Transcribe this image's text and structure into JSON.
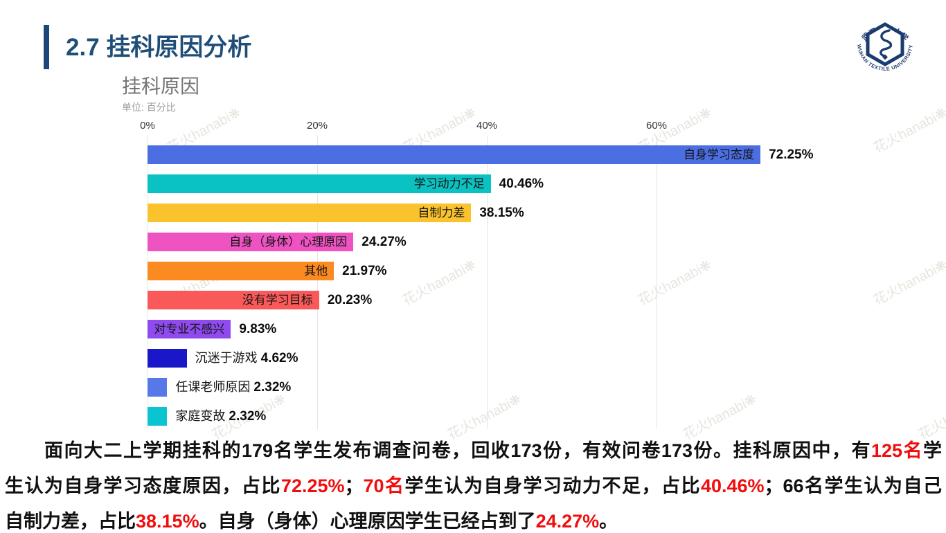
{
  "page": {
    "title": "2.7 挂科原因分析",
    "title_color": "#1f4e79"
  },
  "logo": {
    "top_text": "武汉纺织大学",
    "bottom_text": "WUHAN TEXTILE UNIVERSITY",
    "color": "#1b3c6e"
  },
  "chart": {
    "title": "挂科原因",
    "subtitle": "单位: 百分比",
    "watermark_text": "花火hanabi❋"
  },
  "chart_data": {
    "type": "bar",
    "orientation": "horizontal",
    "title": "挂科原因",
    "unit_label": "单位: 百分比",
    "categories": [
      "自身学习态度",
      "学习动力不足",
      "自制力差",
      "自身（身体）心理原因",
      "其他",
      "没有学习目标",
      "对专业不感兴",
      "沉迷于游戏",
      "任课老师原因",
      "家庭变故"
    ],
    "values": [
      72.25,
      40.46,
      38.15,
      24.27,
      21.97,
      20.23,
      9.83,
      4.62,
      2.32,
      2.32
    ],
    "value_labels": [
      "72.25%",
      "40.46%",
      "38.15%",
      "24.27%",
      "21.97%",
      "20.23%",
      "9.83%",
      "4.62%",
      "2.32%",
      "2.32%"
    ],
    "bar_colors": [
      "#4c6ee3",
      "#0bc2c2",
      "#fac32d",
      "#ef53c2",
      "#fb8a20",
      "#f95a59",
      "#8f4bee",
      "#1818c9",
      "#5678e9",
      "#0ac4d2"
    ],
    "x_ticks": [
      "0%",
      "20%",
      "40%",
      "60%"
    ],
    "x_tick_values": [
      0,
      20,
      40,
      60
    ],
    "xlim": [
      0,
      79
    ],
    "grid": true,
    "legend": false,
    "label_placement": "inside-end for bars 1-7, outside-end for bars 8-10"
  },
  "summary": {
    "red_color": "#f20d0d",
    "lines": [
      {
        "fill": true,
        "segments": [
          {
            "style": "plain",
            "text": "　　面向大二上学期挂科的179名学生发布调查问卷，回收173份，有效问卷173份。挂科原因中，有"
          },
          {
            "style": "red",
            "text": "125名"
          },
          {
            "style": "plain",
            "text": "学"
          }
        ]
      },
      {
        "fill": true,
        "segments": [
          {
            "style": "plain",
            "text": "生认为自身学习态度原因，占比"
          },
          {
            "style": "red-bold",
            "text": "72.25%"
          },
          {
            "style": "plain",
            "text": "；"
          },
          {
            "style": "red-bold",
            "text": "70名"
          },
          {
            "style": "plain",
            "text": "学生认为自身学习动力不足，占比"
          },
          {
            "style": "red-bold",
            "text": "40.46%"
          },
          {
            "style": "plain",
            "text": "；66名学生认为自己"
          }
        ]
      },
      {
        "fill": false,
        "segments": [
          {
            "style": "plain",
            "text": "自制力差，占比"
          },
          {
            "style": "red-bold",
            "text": "38.15%"
          },
          {
            "style": "plain",
            "text": "。自身（身体）心理原因学生已经占到了"
          },
          {
            "style": "red-bold",
            "text": "24.27%"
          },
          {
            "style": "plain",
            "text": "。"
          }
        ]
      }
    ]
  }
}
